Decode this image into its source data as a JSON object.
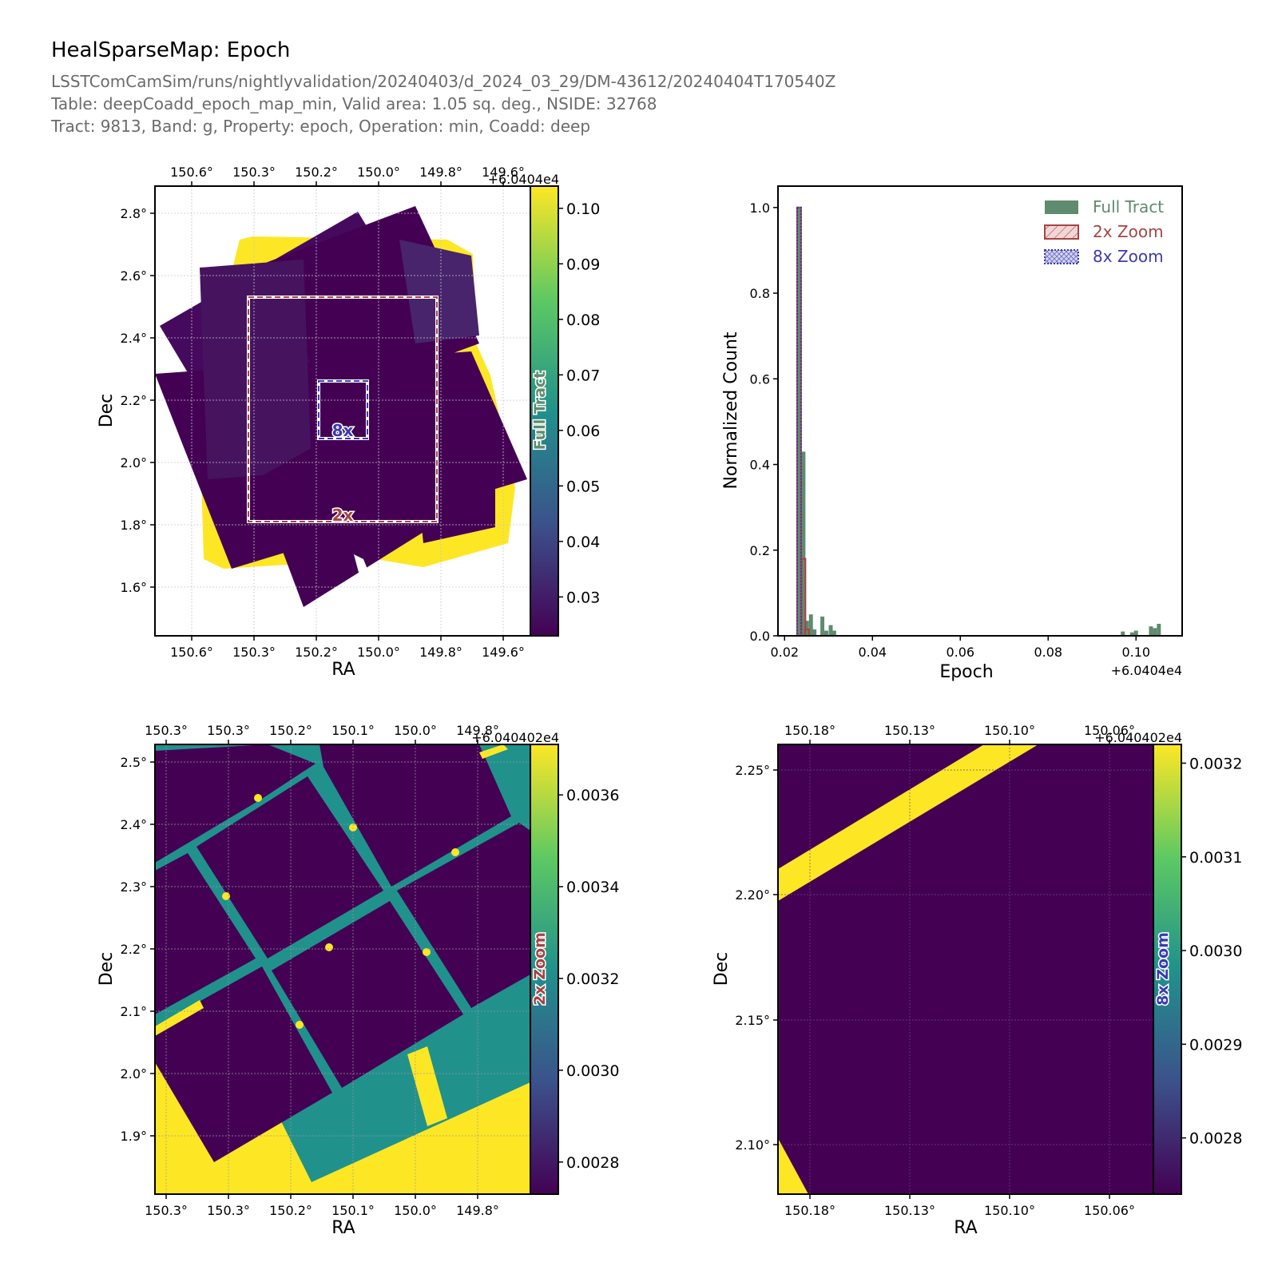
{
  "header": {
    "title": "HealSparseMap: Epoch",
    "subtitle_lines": [
      "LSSTComCamSim/runs/nightlyvalidation/20240403/d_2024_03_29/DM-43612/20240404T170540Z",
      "Table: deepCoadd_epoch_map_min, Valid area: 1.05 sq. deg., NSIDE: 32768",
      "Tract: 9813, Band: g, Property: epoch, Operation: min, Coadd: deep"
    ]
  },
  "colors": {
    "viridis_dark": "#440154",
    "viridis_yellow": "#fde725",
    "viridis_teal": "#21918c",
    "full_tract": "#5f8b6e",
    "zoom2x": "#a64444",
    "zoom8x": "#3a3ab0"
  },
  "chart_data": [
    {
      "id": "full-tract-map",
      "type": "heatmap",
      "xlabel": "RA",
      "ylabel": "Dec",
      "xticks": [
        "150.6°",
        "150.3°",
        "150.2°",
        "150.0°",
        "149.8°",
        "149.6°"
      ],
      "yticks": [
        "2.8°",
        "2.6°",
        "2.4°",
        "2.2°",
        "2.0°",
        "1.8°",
        "1.6°"
      ],
      "colorbar_label": "Full Tract",
      "colorbar_offset": "+6.0404e4",
      "colorbar_ticks": [
        "0.10",
        "0.09",
        "0.08",
        "0.07",
        "0.06",
        "0.05",
        "0.04",
        "0.03"
      ],
      "colorbar_range": [
        0.023,
        0.104
      ],
      "annotations": [
        "2x",
        "8x"
      ]
    },
    {
      "id": "epoch-histogram",
      "type": "bar",
      "xlabel": "Epoch",
      "ylabel": "Normalized Count",
      "x_offset": "+6.0404e4",
      "xlim": [
        0.0185,
        0.1105
      ],
      "ylim": [
        0,
        1.05
      ],
      "xticks": [
        "0.02",
        "0.04",
        "0.06",
        "0.08",
        "0.10"
      ],
      "yticks": [
        "0.0",
        "0.2",
        "0.4",
        "0.6",
        "0.8",
        "1.0"
      ],
      "legend_position": "top-right",
      "series": [
        {
          "name": "Full Tract",
          "x": [
            0.0233,
            0.0243,
            0.0251,
            0.026,
            0.0268,
            0.0286,
            0.0295,
            0.0305,
            0.0313,
            0.097,
            0.0991,
            0.1,
            0.1034,
            0.1043,
            0.1052
          ],
          "values": [
            1.0,
            0.43,
            0.035,
            0.05,
            0.015,
            0.045,
            0.012,
            0.025,
            0.012,
            0.01,
            0.008,
            0.012,
            0.022,
            0.018,
            0.028
          ]
        },
        {
          "name": "2x Zoom",
          "x": [
            0.0233,
            0.0243,
            0.0251
          ],
          "values": [
            1.0,
            0.18,
            0.015
          ]
        },
        {
          "name": "8x Zoom",
          "x": [
            0.0233
          ],
          "values": [
            1.0
          ]
        }
      ]
    },
    {
      "id": "zoom2x-map",
      "type": "heatmap",
      "xlabel": "RA",
      "ylabel": "Dec",
      "xticks": [
        "150.3°",
        "150.3°",
        "150.2°",
        "150.1°",
        "150.0°",
        "149.8°"
      ],
      "yticks": [
        "2.5°",
        "2.4°",
        "2.3°",
        "2.2°",
        "2.1°",
        "2.0°",
        "1.9°"
      ],
      "colorbar_label": "2x Zoom",
      "colorbar_offset": "+6.040402e4",
      "colorbar_ticks": [
        "0.0036",
        "0.0034",
        "0.0032",
        "0.0030",
        "0.0028"
      ],
      "colorbar_range": [
        0.00273,
        0.00371
      ]
    },
    {
      "id": "zoom8x-map",
      "type": "heatmap",
      "xlabel": "RA",
      "ylabel": "Dec",
      "xticks": [
        "150.18°",
        "150.13°",
        "150.10°",
        "150.06°"
      ],
      "yticks": [
        "2.25°",
        "2.20°",
        "2.15°",
        "2.10°"
      ],
      "colorbar_label": "8x Zoom",
      "colorbar_offset": "+6.040402e4",
      "colorbar_ticks": [
        "0.0032",
        "0.0031",
        "0.0030",
        "0.0029",
        "0.0028"
      ],
      "colorbar_range": [
        0.00274,
        0.00322
      ]
    }
  ]
}
